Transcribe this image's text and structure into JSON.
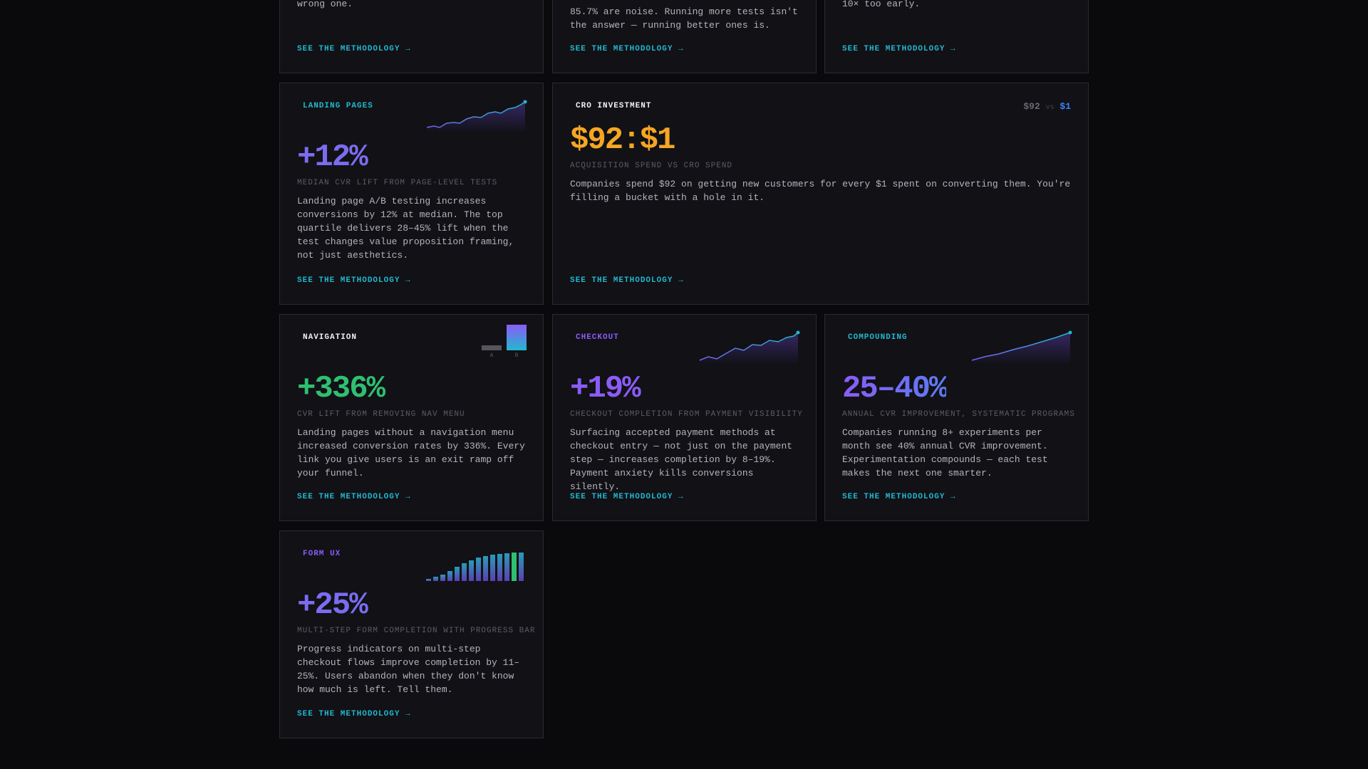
{
  "top_cards": [
    {
      "body": "wrong one.",
      "link": "SEE THE METHODOLOGY →"
    },
    {
      "body": "85.7% are noise. Running more tests isn't the answer — running better ones is.",
      "link": "SEE THE METHODOLOGY →"
    },
    {
      "body": "10× too early.",
      "link": "SEE THE METHODOLOGY →"
    }
  ],
  "cards": [
    {
      "tag": "LANDING PAGES",
      "stat": "+12%",
      "caption": "MEDIAN CVR LIFT FROM PAGE-LEVEL TESTS",
      "body": "Landing page A/B testing increases conversions by 12% at median. The top quartile delivers 28–45% lift when the test changes value proposition framing, not just aesthetics.",
      "link": "SEE THE METHODOLOGY →"
    },
    {
      "tag": "CRO INVESTMENT",
      "ratio": {
        "left": "$92",
        "vs": "vs",
        "right": "$1"
      },
      "stat": "$92:$1",
      "caption": "ACQUISITION SPEND VS CRO SPEND",
      "body": "Companies spend $92 on getting new customers for every $1 spent on converting them. You're filling a bucket with a hole in it.",
      "link": "SEE THE METHODOLOGY →"
    },
    {
      "tag": "NAVIGATION",
      "chart_labels": [
        "A",
        "B"
      ],
      "stat": "+336%",
      "caption": "CVR LIFT FROM REMOVING NAV MENU",
      "body": "Landing pages without a navigation menu increased conversion rates by 336%. Every link you give users is an exit ramp off your funnel.",
      "link": "SEE THE METHODOLOGY →"
    },
    {
      "tag": "CHECKOUT",
      "stat": "+19%",
      "caption": "CHECKOUT COMPLETION FROM PAYMENT VISIBILITY",
      "body": "Surfacing accepted payment methods at checkout entry — not just on the payment step — increases completion by 8–19%. Payment anxiety kills conversions silently.",
      "link": "SEE THE METHODOLOGY →"
    },
    {
      "tag": "COMPOUNDING",
      "stat": "25–40%",
      "caption": "ANNUAL CVR IMPROVEMENT, SYSTEMATIC PROGRAMS",
      "body": "Companies running 8+ experiments per month see 40% annual CVR improvement. Experimentation compounds — each test makes the next one smarter.",
      "link": "SEE THE METHODOLOGY →"
    },
    {
      "tag": "FORM UX",
      "stat": "+25%",
      "caption": "MULTI-STEP FORM COMPLETION WITH PROGRESS BAR",
      "body": "Progress indicators on multi-step checkout flows improve completion by 11–25%. Users abandon when they don't know how much is left. Tell them.",
      "link": "SEE THE METHODOLOGY →"
    }
  ]
}
